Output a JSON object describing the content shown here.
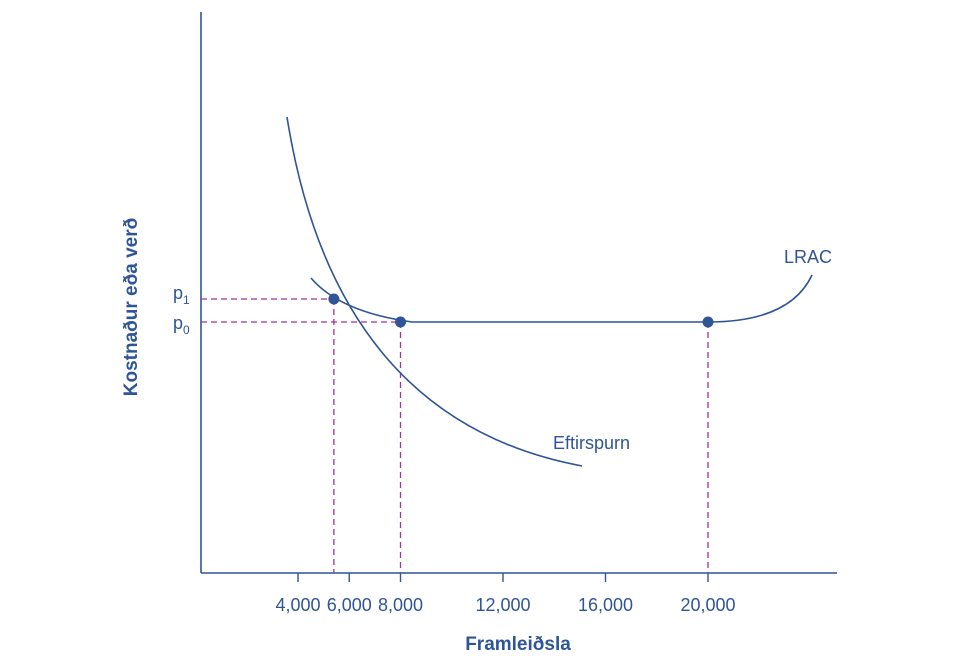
{
  "chart_data": {
    "type": "line",
    "xlabel": "Framleiðsla",
    "ylabel": "Kostnaður eða verð",
    "x_ticks": [
      "4,000",
      "6,000",
      "8,000",
      "12,000",
      "16,000",
      "20,000"
    ],
    "x_tick_values": [
      4000,
      6000,
      8000,
      12000,
      16000,
      20000
    ],
    "price_levels": [
      {
        "label": "p",
        "subscript": "1"
      },
      {
        "label": "p",
        "subscript": "0"
      }
    ],
    "series": [
      {
        "name": "LRAC",
        "color": "#2f5597"
      },
      {
        "name": "Eftirspurn",
        "color": "#2f5597"
      }
    ],
    "points": [
      {
        "x": 5400,
        "price": "p1"
      },
      {
        "x": 8000,
        "price": "p0"
      },
      {
        "x": 20000,
        "price": "p0"
      }
    ],
    "colors": {
      "axis": "#2f5597",
      "curves": "#2f5597",
      "guides": "#a0329b",
      "points": "#2f5597"
    }
  }
}
